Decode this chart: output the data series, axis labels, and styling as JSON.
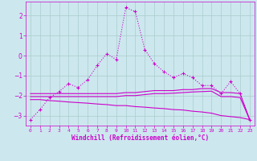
{
  "background_color": "#cce8ee",
  "grid_color": "#aacccc",
  "line_color": "#cc00cc",
  "xlim": [
    -0.5,
    23.5
  ],
  "ylim": [
    -3.5,
    2.7
  ],
  "xlabel": "Windchill (Refroidissement éolien,°C)",
  "xticks": [
    0,
    1,
    2,
    3,
    4,
    5,
    6,
    7,
    8,
    9,
    10,
    11,
    12,
    13,
    14,
    15,
    16,
    17,
    18,
    19,
    20,
    21,
    22,
    23
  ],
  "yticks": [
    -3,
    -2,
    -1,
    0,
    1,
    2
  ],
  "series": [
    {
      "x": [
        0,
        1,
        2,
        3,
        4,
        5,
        6,
        7,
        8,
        9,
        10,
        11,
        12,
        13,
        14,
        15,
        16,
        17,
        18,
        19,
        20,
        21,
        22,
        23
      ],
      "y": [
        -3.2,
        -2.7,
        -2.1,
        -1.8,
        -1.4,
        -1.6,
        -1.2,
        -0.5,
        0.1,
        -0.2,
        2.4,
        2.2,
        0.3,
        -0.4,
        -0.8,
        -1.1,
        -0.9,
        -1.1,
        -1.5,
        -1.5,
        -1.9,
        -1.3,
        -1.9,
        -3.2
      ],
      "marker": "+",
      "linestyle": "dotted",
      "linewidth": 0.8,
      "markersize": 3
    },
    {
      "x": [
        0,
        1,
        2,
        3,
        4,
        5,
        6,
        7,
        8,
        9,
        10,
        11,
        12,
        13,
        14,
        15,
        16,
        17,
        18,
        19,
        20,
        21,
        22,
        23
      ],
      "y": [
        -1.9,
        -1.9,
        -1.9,
        -1.9,
        -1.9,
        -1.9,
        -1.9,
        -1.9,
        -1.9,
        -1.9,
        -1.85,
        -1.85,
        -1.8,
        -1.75,
        -1.75,
        -1.75,
        -1.7,
        -1.7,
        -1.65,
        -1.65,
        -1.85,
        -1.85,
        -1.9,
        -3.2
      ],
      "marker": null,
      "linestyle": "solid",
      "linewidth": 0.8,
      "markersize": 0
    },
    {
      "x": [
        0,
        1,
        2,
        3,
        4,
        5,
        6,
        7,
        8,
        9,
        10,
        11,
        12,
        13,
        14,
        15,
        16,
        17,
        18,
        19,
        20,
        21,
        22,
        23
      ],
      "y": [
        -2.05,
        -2.05,
        -2.05,
        -2.05,
        -2.05,
        -2.05,
        -2.05,
        -2.05,
        -2.05,
        -2.05,
        -2.0,
        -2.0,
        -1.95,
        -1.9,
        -1.9,
        -1.88,
        -1.85,
        -1.82,
        -1.8,
        -1.78,
        -2.05,
        -2.05,
        -2.1,
        -3.2
      ],
      "marker": null,
      "linestyle": "solid",
      "linewidth": 0.8,
      "markersize": 0
    },
    {
      "x": [
        0,
        1,
        2,
        3,
        4,
        5,
        6,
        7,
        8,
        9,
        10,
        11,
        12,
        13,
        14,
        15,
        16,
        17,
        18,
        19,
        20,
        21,
        22,
        23
      ],
      "y": [
        -2.2,
        -2.2,
        -2.25,
        -2.28,
        -2.32,
        -2.35,
        -2.38,
        -2.42,
        -2.45,
        -2.5,
        -2.5,
        -2.55,
        -2.58,
        -2.62,
        -2.65,
        -2.7,
        -2.72,
        -2.78,
        -2.82,
        -2.88,
        -3.0,
        -3.05,
        -3.1,
        -3.2
      ],
      "marker": null,
      "linestyle": "solid",
      "linewidth": 0.8,
      "markersize": 0
    }
  ]
}
